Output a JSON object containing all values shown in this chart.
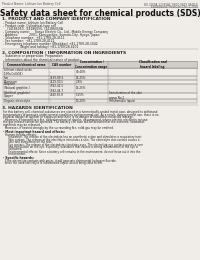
{
  "background_color": "#f0ede8",
  "page_bg": "#f0ede8",
  "header_left": "Product Name: Lithium Ion Battery Cell",
  "header_right_line1": "BU-3000A-12345AY 1W10-0819 08/819",
  "header_right_line2": "Established / Revision: Dec.1,2010",
  "title": "Safety data sheet for chemical products (SDS)",
  "section1_title": "1. PRODUCT AND COMPANY IDENTIFICATION",
  "section1_lines": [
    "- Product name: Lithium Ion Battery Cell",
    "- Product code: Cylindrical-type cell",
    "    (14186050, (14186050, (14186050A",
    "- Company name:     Sanyo Electric Co., Ltd., Mobile Energy Company",
    "- Address:           2001, Kamiyashiro, Sumoto-City, Hyogo, Japan",
    "- Telephone number:  +81-1789-28-4111",
    "- Fax number:  +81-1789-28-4121",
    "- Emergency telephone number (Weekday) +81-1789-28-1042",
    "                 (Night and holiday) +81-1789-28-4101"
  ],
  "section2_title": "2. COMPOSITION / INFORMATION ON INGREDIENTS",
  "section2_sub1": "- Substance or preparation: Preparation",
  "section2_sub2": "- Information about the chemical nature of product:",
  "table_col_names": [
    "Common/chemical name",
    "CAS number",
    "Concentration /\nConcentration range",
    "Classification and\nhazard labeling"
  ],
  "table_rows": [
    [
      "Lithium cobalt oxide\n(LiMn-CoXiO4)",
      "-",
      "30-40%",
      ""
    ],
    [
      "Iron",
      "7439-89-6",
      "15-25%",
      "-"
    ],
    [
      "Aluminum",
      "7429-90-5",
      "2-8%",
      "-"
    ],
    [
      "Graphite\n(Natural graphite-)\n(Artificial graphite)",
      "7782-42-5\n7782-44-7",
      "15-25%",
      ""
    ],
    [
      "Copper",
      "7440-50-8",
      "5-15%",
      "Sensitization of the skin\ngroup No.2"
    ],
    [
      "Organic electrolyte",
      "-",
      "10-20%",
      "Inflammable liquid"
    ]
  ],
  "section3_title": "3. HAZARDS IDENTIFICATION",
  "section3_paras": [
    "For this battery cell, chemical substances are stored in a hermetically-sealed metal case, designed to withstand",
    "temperatures of pressure-under-normal-conditions during normal use. As a result, during normal use, there is no",
    "physical danger of ignition or explosion and there is no danger of hazardous materials leakage.",
    "  However, if exposed to a fire, added mechanical shocks, decomposed, whose electric electricity misuse",
    "the gas release cannot be operated. The battery cell case will be breached at the extreme, hazardous",
    "materials may be released.",
    "  Moreover, if heated strongly by the surrounding fire, solid gas may be emitted."
  ],
  "section3_important": "- Most important hazard and effects:",
  "section3_human": "Human health effects:",
  "section3_health_lines": [
    "      Inhalation: The release of the electrolyte has an anesthetic action and stimulates a respiratory tract.",
    "      Skin contact: The release of the electrolyte stimulates a skin. The electrolyte skin contact causes a",
    "      sore and stimulation on the skin.",
    "      Eye contact: The release of the electrolyte stimulates eyes. The electrolyte eye contact causes a sore",
    "      and stimulation on the eye. Especially, substance that causes a strong inflammation of the eye is",
    "      contained.",
    "      Environmental effects: Since a battery cell remains in the environment, do not throw out it into the",
    "      environment."
  ],
  "section3_specific": "- Specific hazards:",
  "section3_specific_lines": [
    "  If the electrolyte contacts with water, it will generate detrimental hydrogen fluoride.",
    "  Since the used electrolyte is inflammable liquid, do not bring close to fire."
  ],
  "text_color": "#222222",
  "line_color": "#999999",
  "table_header_bg": "#d0ccc8",
  "table_border": "#888888"
}
